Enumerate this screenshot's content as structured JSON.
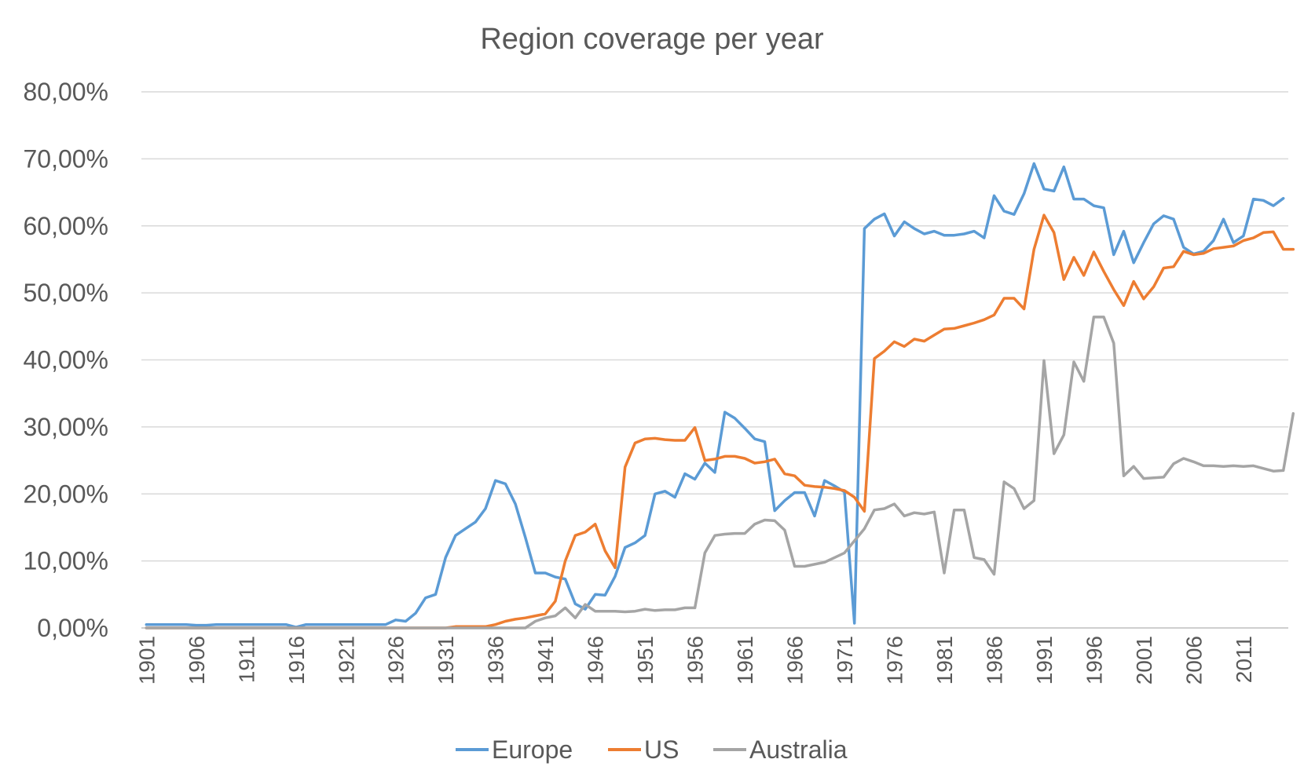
{
  "chart_data": {
    "type": "line",
    "title": "Region coverage per year",
    "xlabel": "",
    "ylabel": "",
    "ylim": [
      0,
      0.8
    ],
    "yticks": [
      0,
      0.1,
      0.2,
      0.3,
      0.4,
      0.5,
      0.6,
      0.7,
      0.8
    ],
    "ytick_labels": [
      "0,00%",
      "10,00%",
      "20,00%",
      "30,00%",
      "40,00%",
      "50,00%",
      "60,00%",
      "70,00%",
      "80,00%"
    ],
    "x_start": 1901,
    "x_end": 2015,
    "xtick_labels": [
      "1901",
      "1906",
      "1911",
      "1916",
      "1921",
      "1926",
      "1931",
      "1936",
      "1941",
      "1946",
      "1951",
      "1956",
      "1961",
      "1966",
      "1971",
      "1976",
      "1981",
      "1986",
      "1991",
      "1996",
      "2001",
      "2006",
      "2011"
    ],
    "grid": "horizontal",
    "legend": "bottom",
    "series": [
      {
        "name": "Europe",
        "color": "#5b9bd5",
        "values": [
          0.005,
          0.005,
          0.005,
          0.005,
          0.005,
          0.004,
          0.004,
          0.005,
          0.005,
          0.005,
          0.005,
          0.005,
          0.005,
          0.005,
          0.005,
          0.001,
          0.005,
          0.005,
          0.005,
          0.005,
          0.005,
          0.005,
          0.005,
          0.005,
          0.005,
          0.012,
          0.01,
          0.022,
          0.045,
          0.05,
          0.105,
          0.138,
          0.148,
          0.158,
          0.178,
          0.22,
          0.215,
          0.185,
          0.135,
          0.082,
          0.082,
          0.076,
          0.073,
          0.036,
          0.028,
          0.05,
          0.049,
          0.077,
          0.12,
          0.127,
          0.138,
          0.2,
          0.204,
          0.195,
          0.23,
          0.222,
          0.246,
          0.232,
          0.322,
          0.313,
          0.298,
          0.282,
          0.278,
          0.175,
          0.19,
          0.202,
          0.202,
          0.167,
          0.22,
          0.212,
          0.203,
          0.007,
          0.596,
          0.61,
          0.618,
          0.585,
          0.606,
          0.596,
          0.588,
          0.592,
          0.586,
          0.586,
          0.588,
          0.592,
          0.582,
          0.645,
          0.622,
          0.617,
          0.648,
          0.693,
          0.655,
          0.652,
          0.688,
          0.64,
          0.64,
          0.63,
          0.627,
          0.557,
          0.592,
          0.545,
          0.575,
          0.603,
          0.615,
          0.61,
          0.568,
          0.558,
          0.562,
          0.578,
          0.61,
          0.575,
          0.585,
          0.64,
          0.638,
          0.63,
          0.641
        ]
      },
      {
        "name": "US",
        "color": "#ed7d31",
        "values": [
          0.0,
          0.0,
          0.0,
          0.0,
          0.0,
          0.0,
          0.0,
          0.0,
          0.0,
          0.0,
          0.0,
          0.0,
          0.0,
          0.0,
          0.0,
          0.0,
          0.0,
          0.0,
          0.0,
          0.0,
          0.0,
          0.0,
          0.0,
          0.0,
          0.0,
          0.0,
          0.0,
          0.0,
          0.0,
          0.0,
          0.0,
          0.002,
          0.002,
          0.002,
          0.002,
          0.005,
          0.01,
          0.013,
          0.015,
          0.018,
          0.021,
          0.04,
          0.1,
          0.138,
          0.143,
          0.155,
          0.115,
          0.09,
          0.24,
          0.276,
          0.282,
          0.283,
          0.281,
          0.28,
          0.28,
          0.299,
          0.25,
          0.252,
          0.256,
          0.256,
          0.253,
          0.246,
          0.248,
          0.252,
          0.23,
          0.227,
          0.213,
          0.211,
          0.21,
          0.208,
          0.205,
          0.195,
          0.174,
          0.402,
          0.413,
          0.427,
          0.42,
          0.431,
          0.428,
          0.437,
          0.446,
          0.447,
          0.451,
          0.455,
          0.46,
          0.467,
          0.492,
          0.492,
          0.476,
          0.565,
          0.616,
          0.59,
          0.52,
          0.553,
          0.526,
          0.561,
          0.532,
          0.505,
          0.481,
          0.517,
          0.491,
          0.509,
          0.537,
          0.539,
          0.562,
          0.557,
          0.559,
          0.566,
          0.568,
          0.57,
          0.578,
          0.582,
          0.59,
          0.591,
          0.565,
          0.565
        ]
      },
      {
        "name": "Australia",
        "color": "#a5a5a5",
        "values": [
          0.0,
          0.0,
          0.0,
          0.0,
          0.0,
          0.0,
          0.0,
          0.0,
          0.0,
          0.0,
          0.0,
          0.0,
          0.0,
          0.0,
          0.0,
          0.0,
          0.0,
          0.0,
          0.0,
          0.0,
          0.0,
          0.0,
          0.0,
          0.0,
          0.0,
          0.0,
          0.0,
          0.0,
          0.0,
          0.0,
          0.0,
          0.0,
          0.0,
          0.0,
          0.0,
          0.0,
          0.0,
          0.0,
          0.0,
          0.01,
          0.015,
          0.018,
          0.03,
          0.015,
          0.035,
          0.025,
          0.025,
          0.025,
          0.024,
          0.025,
          0.028,
          0.026,
          0.027,
          0.027,
          0.03,
          0.03,
          0.112,
          0.138,
          0.14,
          0.141,
          0.141,
          0.155,
          0.161,
          0.16,
          0.146,
          0.092,
          0.092,
          0.095,
          0.098,
          0.105,
          0.112,
          0.13,
          0.148,
          0.176,
          0.178,
          0.185,
          0.167,
          0.172,
          0.17,
          0.173,
          0.082,
          0.176,
          0.176,
          0.105,
          0.102,
          0.08,
          0.218,
          0.208,
          0.178,
          0.19,
          0.399,
          0.26,
          0.288,
          0.397,
          0.368,
          0.464,
          0.464,
          0.425,
          0.227,
          0.241,
          0.223,
          0.224,
          0.225,
          0.245,
          0.253,
          0.248,
          0.242,
          0.242,
          0.241,
          0.242,
          0.241,
          0.242,
          0.238,
          0.234,
          0.235,
          0.32
        ]
      }
    ]
  }
}
